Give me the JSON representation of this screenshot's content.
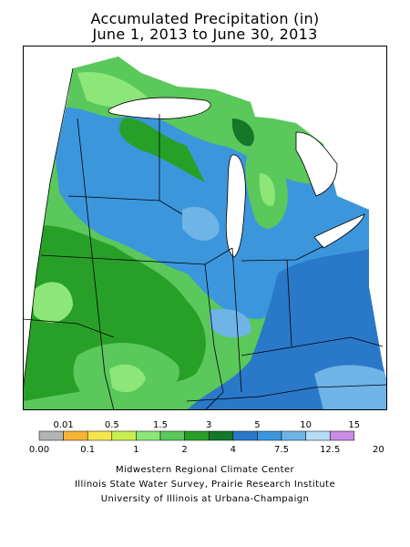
{
  "title": {
    "line1": "Accumulated Precipitation (in)",
    "line2": "June 1, 2013 to June 30, 2013"
  },
  "colors": {
    "frame": "#000000",
    "lakes": "#ffffff",
    "background": "#ffffff"
  },
  "legend": {
    "bins": [
      {
        "color": "#b4b4b4"
      },
      {
        "color": "#f5b437"
      },
      {
        "color": "#f5e650"
      },
      {
        "color": "#c8f050"
      },
      {
        "color": "#8ce678"
      },
      {
        "color": "#5ac85a"
      },
      {
        "color": "#28a028"
      },
      {
        "color": "#147828"
      },
      {
        "color": "#2a78c8"
      },
      {
        "color": "#3c96dc"
      },
      {
        "color": "#6eb4e6"
      },
      {
        "color": "#b4dcf5"
      },
      {
        "color": "#c88ce6"
      }
    ],
    "top_labels": [
      "0.01",
      "0.5",
      "1.5",
      "3",
      "5",
      "10",
      "15"
    ],
    "bottom_labels": [
      "0.00",
      "0.1",
      "1",
      "2",
      "4",
      "7.5",
      "12.5",
      "20"
    ]
  },
  "credits": {
    "line1": "Midwestern Regional Climate Center",
    "line2": "Illinois State Water Survey, Prairie Research Institute",
    "line3": "University of Illinois at Urbana-Champaign"
  }
}
